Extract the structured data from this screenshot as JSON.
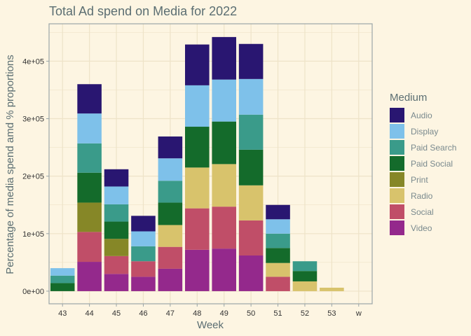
{
  "chart_data": {
    "type": "bar",
    "stacked": true,
    "title": "Total Ad spend on Media for 2022",
    "xlabel": "Week",
    "ylabel": "Percentage of media spend amd % proportions",
    "categories": [
      "43",
      "44",
      "45",
      "46",
      "47",
      "48",
      "49",
      "50",
      "51",
      "52",
      "53",
      "w"
    ],
    "ylim": [
      -22000,
      465000
    ],
    "yticks": [
      0,
      100000,
      200000,
      300000,
      400000
    ],
    "ytick_labels": [
      "0e+00",
      "1e+05",
      "2e+05",
      "3e+05",
      "4e+05"
    ],
    "grid": true,
    "legend": {
      "title": "Medium",
      "position": "right"
    },
    "series": [
      {
        "name": "Video",
        "color": "#94298c",
        "values": [
          0,
          51000,
          30000,
          25000,
          39000,
          72000,
          74000,
          62000,
          0,
          0,
          0,
          0
        ]
      },
      {
        "name": "Social",
        "color": "#c04e68",
        "values": [
          0,
          52000,
          31000,
          27000,
          38000,
          72000,
          73000,
          61000,
          25000,
          0,
          0,
          0
        ]
      },
      {
        "name": "Radio",
        "color": "#d8c36c",
        "values": [
          0,
          0,
          0,
          0,
          38000,
          71000,
          74000,
          61000,
          24000,
          17000,
          6000,
          0
        ]
      },
      {
        "name": "Print",
        "color": "#868727",
        "values": [
          0,
          51000,
          30000,
          0,
          0,
          0,
          0,
          0,
          0,
          0,
          0,
          0
        ]
      },
      {
        "name": "Paid Social",
        "color": "#146b2b",
        "values": [
          14000,
          52000,
          30000,
          0,
          39000,
          71000,
          74000,
          62000,
          26000,
          18000,
          0,
          0
        ]
      },
      {
        "name": "Paid Search",
        "color": "#3a9b8a",
        "values": [
          13000,
          51000,
          30000,
          26000,
          38000,
          0,
          0,
          61000,
          25000,
          17000,
          0,
          0
        ]
      },
      {
        "name": "Display",
        "color": "#7ec1ea",
        "values": [
          13000,
          52000,
          31000,
          26000,
          39000,
          72000,
          73000,
          62000,
          25000,
          0,
          0,
          0
        ]
      },
      {
        "name": "Audio",
        "color": "#291671",
        "values": [
          0,
          51000,
          30000,
          27000,
          38000,
          71000,
          74000,
          61000,
          25000,
          0,
          0,
          0
        ]
      }
    ],
    "legend_order": [
      "Audio",
      "Display",
      "Paid Search",
      "Paid Social",
      "Print",
      "Radio",
      "Social",
      "Video"
    ]
  },
  "style": {
    "background": "#fdf5e2",
    "grid_color": "#eee3c8",
    "axis_color": "#9aa5a8",
    "text_color": "#5b6e72",
    "tick_text_color": "#333333",
    "legend_text_color": "#7a8a8e"
  }
}
